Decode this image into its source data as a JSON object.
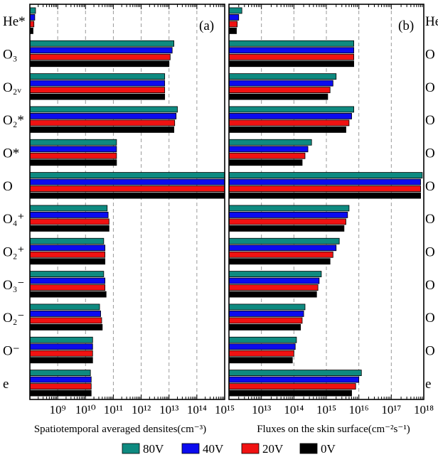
{
  "chart_data": [
    {
      "type": "bar",
      "orientation": "horizontal",
      "panel_label": "(a)",
      "xlabel": "Spatiotemporal averaged densites(cm⁻³)",
      "xscale": "log",
      "xlim": [
        100000000.0,
        1000000000000000.0
      ],
      "grid": "vertical dashed",
      "xtick_labels": [
        "10⁹",
        "10¹⁰",
        "10¹¹",
        "10¹²",
        "10¹³",
        "10¹⁴",
        "10¹⁵"
      ],
      "categories": [
        "He*",
        "O₃",
        "O₂ᵥ",
        "O₂*",
        "O*",
        "O",
        "O₄⁺",
        "O₂⁺",
        "O₃⁻",
        "O₂⁻",
        "O⁻",
        "e"
      ],
      "series": [
        {
          "name": "80V",
          "values": [
            160000000.0,
            15000000000000.0,
            7000000000000.0,
            20000000000000.0,
            130000000000.0,
            1000000000000000.0,
            60000000000.0,
            45000000000.0,
            45000000000.0,
            32000000000.0,
            18000000000.0,
            15000000000.0
          ]
        },
        {
          "name": "40V",
          "values": [
            150000000.0,
            13000000000000.0,
            7000000000000.0,
            18000000000000.0,
            130000000000.0,
            1000000000000000.0,
            65000000000.0,
            50000000000.0,
            50000000000.0,
            35000000000.0,
            18000000000.0,
            16000000000.0
          ]
        },
        {
          "name": "20V",
          "values": [
            140000000.0,
            11000000000000.0,
            7000000000000.0,
            16000000000000.0,
            130000000000.0,
            1000000000000000.0,
            70000000000.0,
            50000000000.0,
            50000000000.0,
            38000000000.0,
            18000000000.0,
            16000000000.0
          ]
        },
        {
          "name": "0V",
          "values": [
            130000000.0,
            10000000000000.0,
            7000000000000.0,
            15000000000000.0,
            130000000000.0,
            1000000000000000.0,
            70000000000.0,
            50000000000.0,
            55000000000.0,
            40000000000.0,
            18000000000.0,
            16000000000.0
          ]
        }
      ]
    },
    {
      "type": "bar",
      "orientation": "horizontal",
      "panel_label": "(b)",
      "xlabel": "Fluxes on the skin surface(cm⁻²s⁻¹)",
      "xscale": "log",
      "xlim": [
        1000000000000.0,
        1e+18
      ],
      "grid": "vertical dashed",
      "xtick_labels": [
        "10¹³",
        "10¹⁴",
        "10¹⁵",
        "10¹⁶",
        "10¹⁷",
        "10¹⁸"
      ],
      "categories": [
        "He*",
        "O₃",
        "O₂ᵥ",
        "O₂*",
        "O*",
        "O",
        "O₄⁺",
        "O₂⁺",
        "O₃⁻",
        "O₂⁻",
        "O⁻",
        "e"
      ],
      "visible_category_labels": [
        "He",
        "O",
        "O",
        "O",
        "O",
        "O",
        "O",
        "O",
        "O",
        "O",
        "O",
        "e"
      ],
      "series": [
        {
          "name": "80V",
          "values": [
            2500000000000.0,
            7000000000000000.0,
            2000000000000000.0,
            7000000000000000.0,
            350000000000000.0,
            9e+17,
            5000000000000000.0,
            2500000000000000.0,
            700000000000000.0,
            220000000000000.0,
            120000000000000.0,
            1.2e+16
          ]
        },
        {
          "name": "40V",
          "values": [
            2000000000000.0,
            7000000000000000.0,
            1600000000000000.0,
            6000000000000000.0,
            270000000000000.0,
            8e+17,
            4500000000000000.0,
            2000000000000000.0,
            600000000000000.0,
            200000000000000.0,
            110000000000000.0,
            1e+16
          ]
        },
        {
          "name": "20V",
          "values": [
            1800000000000.0,
            7000000000000000.0,
            1300000000000000.0,
            5000000000000000.0,
            220000000000000.0,
            8e+17,
            4000000000000000.0,
            1600000000000000.0,
            550000000000000.0,
            180000000000000.0,
            100000000000000.0,
            8000000000000000.0
          ]
        },
        {
          "name": "0V",
          "values": [
            1700000000000.0,
            7000000000000000.0,
            1100000000000000.0,
            4000000000000000.0,
            180000000000000.0,
            8e+17,
            3500000000000000.0,
            1300000000000000.0,
            500000000000000.0,
            160000000000000.0,
            90000000000000.0,
            6000000000000000.0
          ]
        }
      ]
    }
  ],
  "legend": {
    "placement": "bottom-center",
    "entries": [
      {
        "name": "80V",
        "color": "#0e8a80"
      },
      {
        "name": "40V",
        "color": "#0b0bef"
      },
      {
        "name": "20V",
        "color": "#f01212"
      },
      {
        "name": "0V",
        "color": "#000000"
      }
    ]
  }
}
